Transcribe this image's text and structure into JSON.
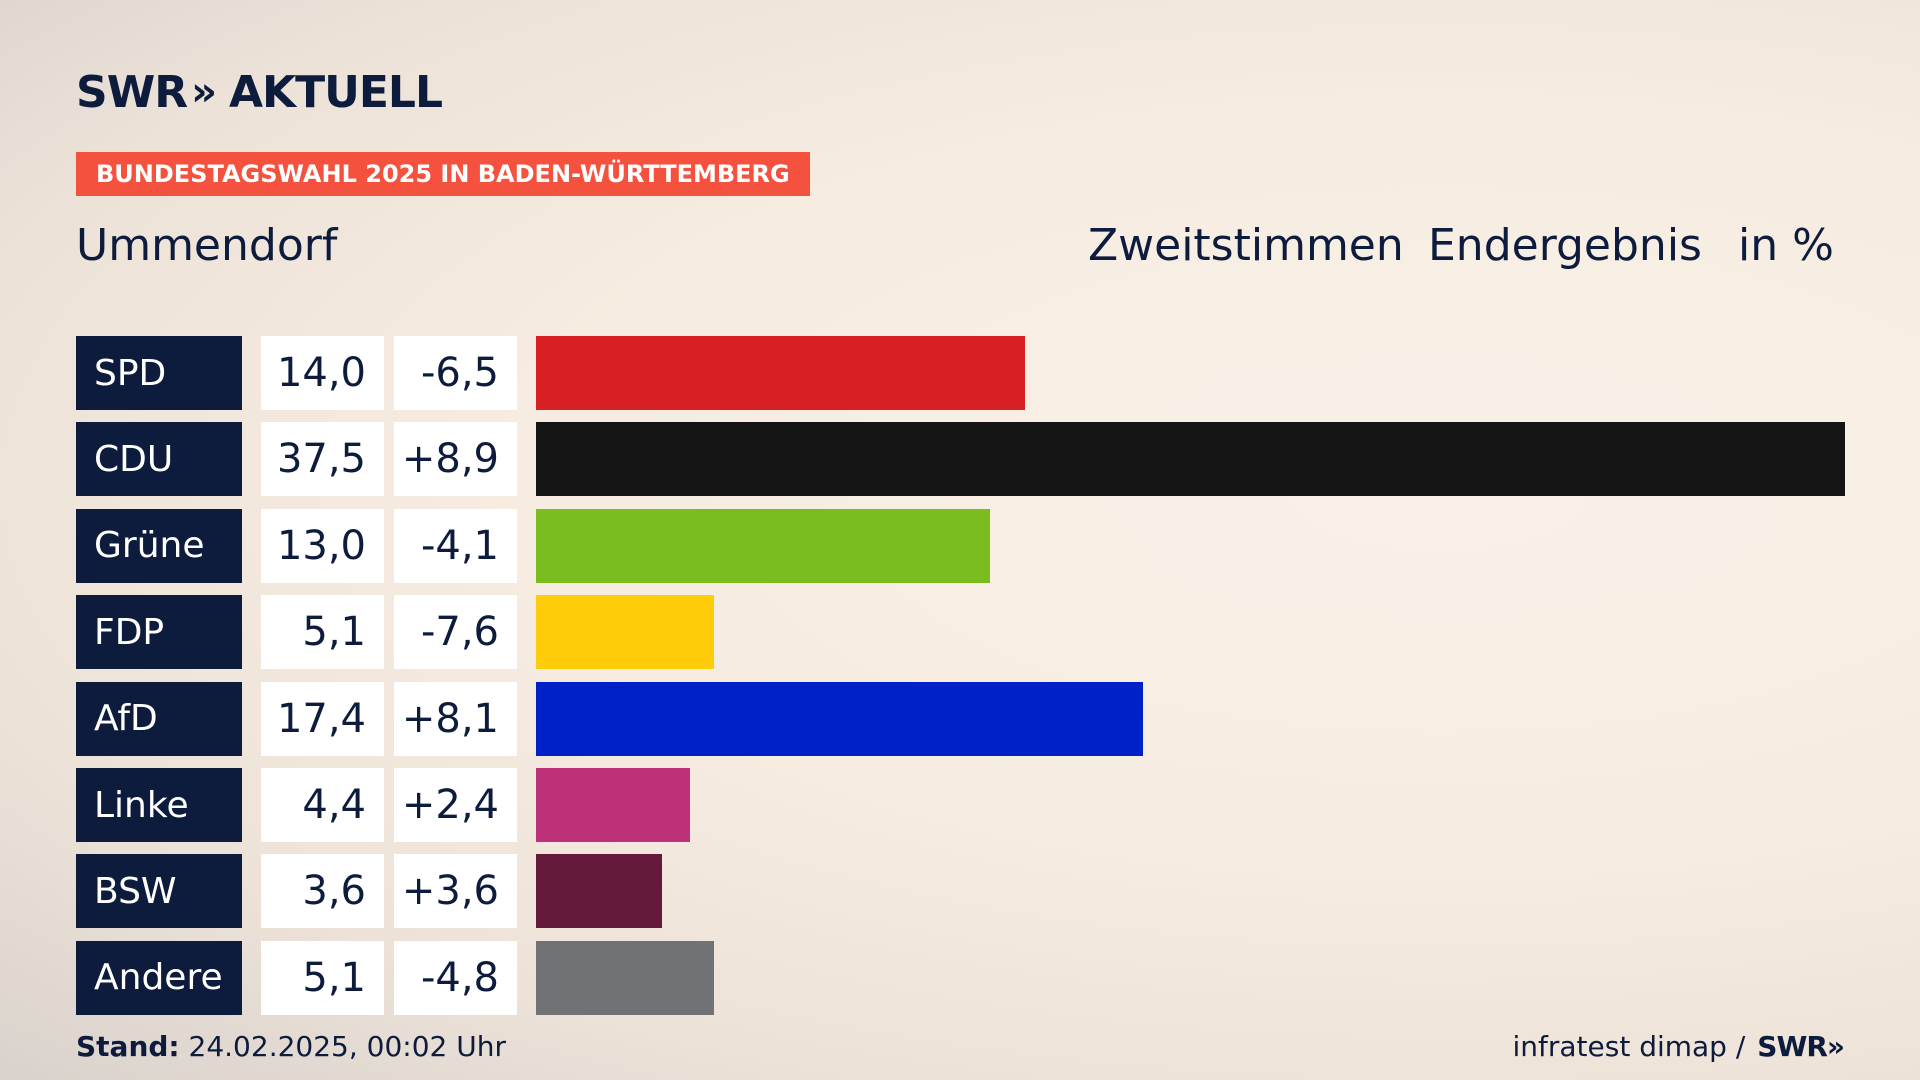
{
  "brand": {
    "logo_text": "SWR",
    "logo_chevrons": "»",
    "logo_product": "AKTUELL"
  },
  "kicker": "BUNDESTAGSWAHL 2025 IN BADEN-WÜRTTEMBERG",
  "place": "Ummendorf",
  "header": {
    "vote": "Zweitstimmen",
    "status": "Endergebnis",
    "unit": "in %"
  },
  "footer": {
    "stand_label": "Stand:",
    "stand_value": "24.02.2025, 00:02 Uhr",
    "source": "infratest dimap /",
    "source_logo": "SWR»"
  },
  "chart_data": {
    "type": "bar",
    "orientation": "horizontal",
    "xlim": [
      0,
      37.5
    ],
    "categories": [
      "SPD",
      "CDU",
      "Grüne",
      "FDP",
      "AfD",
      "Linke",
      "BSW",
      "Andere"
    ],
    "values": [
      14.0,
      37.5,
      13.0,
      5.1,
      17.4,
      4.4,
      3.6,
      5.1
    ],
    "values_display": [
      "14,0",
      "37,5",
      "13,0",
      "5,1",
      "17,4",
      "4,4",
      "3,6",
      "5,1"
    ],
    "diffs_display": [
      "-6,5",
      "+8,9",
      "-4,1",
      "-7,6",
      "+8,1",
      "+2,4",
      "+3,6",
      "-4,8"
    ],
    "colors": [
      "#d81f24",
      "#141414",
      "#7bbd1e",
      "#ffcc0a",
      "#0021c8",
      "#bc3178",
      "#661a3b",
      "#717275"
    ]
  }
}
